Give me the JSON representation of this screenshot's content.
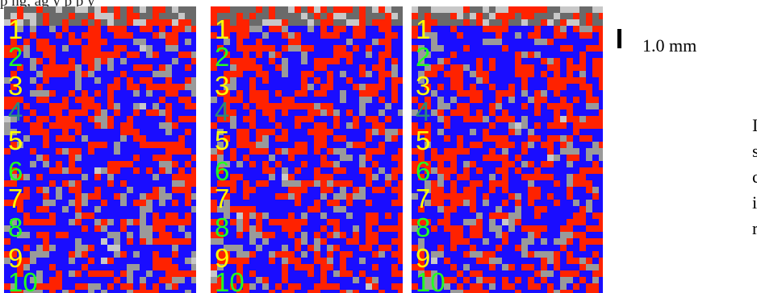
{
  "caption_fragment": "p        ng, ag  y p          p                                                   y",
  "scale_label": "1.0 mm",
  "side_text_fragments": [
    "I",
    "s",
    "c",
    "i",
    "r"
  ],
  "colors": {
    "red": "#ff2200",
    "blue": "#1a0dff",
    "gray_light": "#c8c8c8",
    "gray_mid": "#9a9a9a",
    "gray_dark": "#6a6a6a",
    "label_yellow": "#ffff00",
    "label_green": "#22ff22",
    "label_teal": "#2b8a7a"
  },
  "panels": [
    {
      "id": "panel-1",
      "labels": [
        {
          "text": "1",
          "color": "#ffff00"
        },
        {
          "text": "2",
          "color": "#22ff22"
        },
        {
          "text": "3",
          "color": "#ffff00"
        },
        {
          "text": "4",
          "color": "#2b8a7a"
        },
        {
          "text": "5",
          "color": "#ffff00"
        },
        {
          "text": "6",
          "color": "#22ff22"
        },
        {
          "text": "7",
          "color": "#ffff00"
        },
        {
          "text": "8",
          "color": "#22ff22"
        },
        {
          "text": "9",
          "color": "#ffff00"
        },
        {
          "text": "10",
          "color": "#22ff22"
        }
      ]
    },
    {
      "id": "panel-2",
      "labels": [
        {
          "text": "1",
          "color": "#ffff00"
        },
        {
          "text": "2",
          "color": "#22ff22"
        },
        {
          "text": "3",
          "color": "#ffff00"
        },
        {
          "text": "4",
          "color": "#2b8a7a"
        },
        {
          "text": "5",
          "color": "#ffff00"
        },
        {
          "text": "6",
          "color": "#22ff22"
        },
        {
          "text": "7",
          "color": "#ffff00"
        },
        {
          "text": "8",
          "color": "#22ff22"
        },
        {
          "text": "9",
          "color": "#ffff00"
        },
        {
          "text": "10",
          "color": "#22ff22"
        }
      ]
    },
    {
      "id": "panel-3",
      "labels": [
        {
          "text": "1",
          "color": "#ffff00"
        },
        {
          "text": "2",
          "color": "#22ff22"
        },
        {
          "text": "3",
          "color": "#ffff00"
        },
        {
          "text": "4",
          "color": "#2b8a7a"
        },
        {
          "text": "5",
          "color": "#ffff00"
        },
        {
          "text": "6",
          "color": "#22ff22"
        },
        {
          "text": "7",
          "color": "#ffff00"
        },
        {
          "text": "8",
          "color": "#22ff22"
        },
        {
          "text": "9",
          "color": "#ffff00"
        },
        {
          "text": "10",
          "color": "#22ff22"
        }
      ]
    }
  ]
}
